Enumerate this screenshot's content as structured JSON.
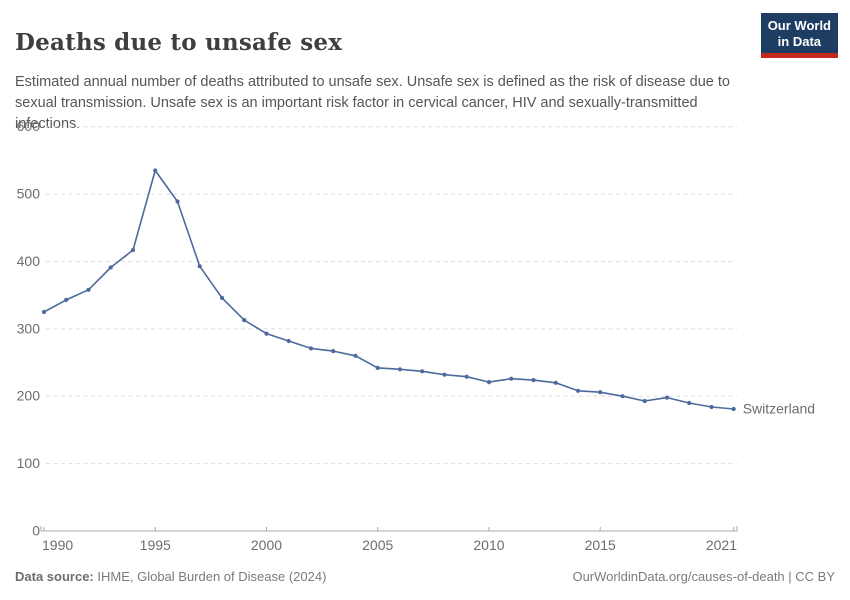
{
  "header": {
    "title": "Deaths due to unsafe sex",
    "subtitle": "Estimated annual number of deaths attributed to unsafe sex. Unsafe sex is defined as the risk of disease due to sexual transmission. Unsafe sex is an important risk factor in cervical cancer, HIV and sexually-transmitted infections.",
    "logo": {
      "line1": "Our World",
      "line2": "in Data",
      "bg_color": "#1d3d63",
      "accent_color": "#c5281c"
    }
  },
  "chart_data": {
    "type": "line",
    "title": "Deaths due to unsafe sex",
    "xlabel": "",
    "ylabel": "",
    "xlim": [
      1990,
      2021
    ],
    "ylim": [
      0,
      600
    ],
    "x_ticks": [
      1990,
      1995,
      2000,
      2005,
      2010,
      2015,
      2021
    ],
    "y_ticks": [
      0,
      100,
      200,
      300,
      400,
      500,
      600
    ],
    "grid": "horizontal-dashed",
    "legend_position": "end-of-line-label",
    "colors": {
      "grid": "#dedede",
      "axis": "#a8a8a8",
      "tick_label": "#6d6d6d"
    },
    "series": [
      {
        "name": "Switzerland",
        "color": "#4c6a9c",
        "x": [
          1990,
          1991,
          1992,
          1993,
          1994,
          1995,
          1996,
          1997,
          1998,
          1999,
          2000,
          2001,
          2002,
          2003,
          2004,
          2005,
          2006,
          2007,
          2008,
          2009,
          2010,
          2011,
          2012,
          2013,
          2014,
          2015,
          2016,
          2017,
          2018,
          2019,
          2020,
          2021
        ],
        "values": [
          325,
          343,
          358,
          391,
          417,
          535,
          489,
          393,
          346,
          313,
          293,
          282,
          271,
          267,
          260,
          242,
          240,
          237,
          232,
          229,
          221,
          226,
          224,
          220,
          208,
          206,
          200,
          193,
          198,
          190,
          184,
          181
        ]
      }
    ]
  },
  "footer": {
    "source_label": "Data source:",
    "source_value": " IHME, Global Burden of Disease (2024)",
    "license": "OurWorldinData.org/causes-of-death | CC BY"
  }
}
